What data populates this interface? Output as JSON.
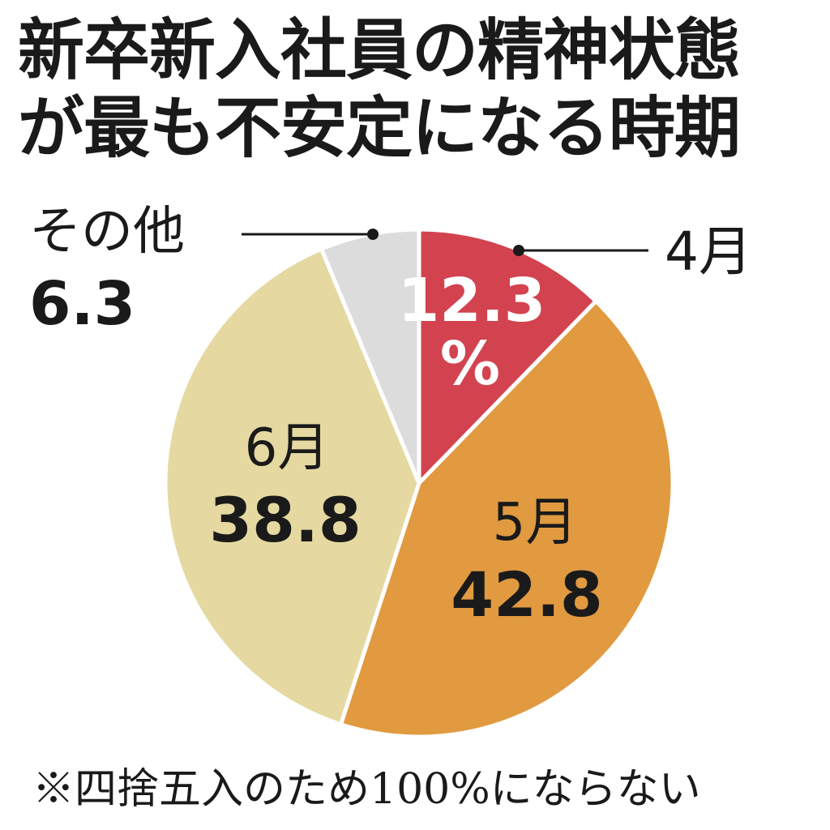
{
  "title": {
    "line1": "新卒新入社員の精神状態",
    "line2": "が最も不安定になる時期"
  },
  "chart_data": {
    "type": "pie",
    "title": "新卒新入社員の精神状態が最も不安定になる時期",
    "unit": "%",
    "slices": [
      {
        "key": "apr",
        "label": "4月",
        "value": 12.3,
        "value_text": "12.3",
        "color": "#d2434f"
      },
      {
        "key": "may",
        "label": "5月",
        "value": 42.8,
        "value_text": "42.8",
        "color": "#e19a40"
      },
      {
        "key": "jun",
        "label": "6月",
        "value": 38.8,
        "value_text": "38.8",
        "color": "#e5d9a1"
      },
      {
        "key": "other",
        "label": "その他",
        "value": 6.3,
        "value_text": "6.3",
        "color": "#dcdcdc"
      }
    ],
    "start": "12 o'clock",
    "direction": "clockwise",
    "legend": "none"
  },
  "footnote": "※四捨五入のため100%にならない"
}
